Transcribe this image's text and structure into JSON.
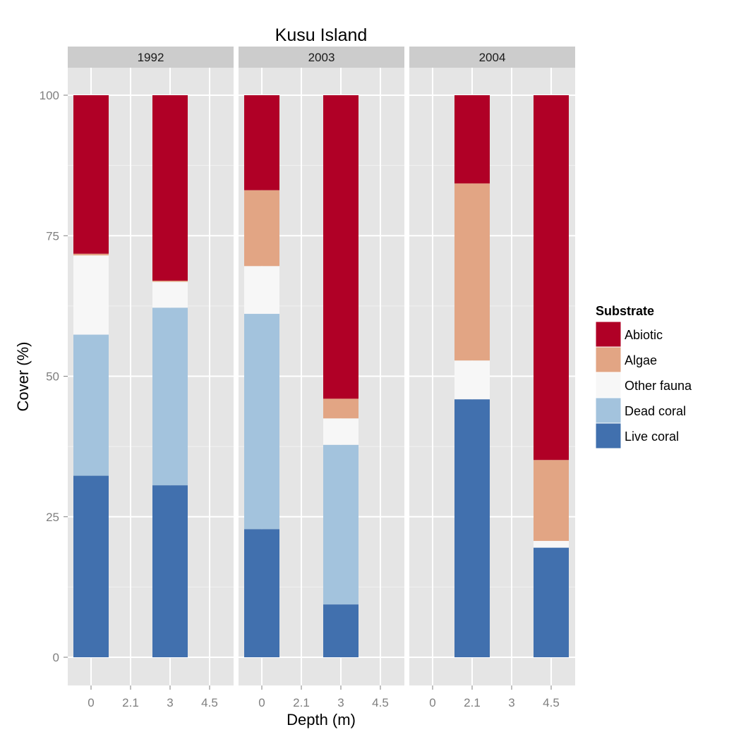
{
  "chart_data": {
    "type": "bar",
    "stacked": true,
    "title": "Kusu Island",
    "xlabel": "Depth (m)",
    "ylabel": "Cover (%)",
    "ylim": [
      -5,
      105
    ],
    "y_ticks": [
      0,
      25,
      50,
      75,
      100
    ],
    "categories": [
      "0",
      "2.1",
      "3",
      "4.5"
    ],
    "grid": true,
    "legend": {
      "title": "Substrate",
      "position": "right",
      "entries": [
        "Abiotic",
        "Algae",
        "Other fauna",
        "Dead coral",
        "Live coral"
      ]
    },
    "colors": {
      "Abiotic": "#b00026",
      "Algae": "#e2a584",
      "Other fauna": "#f7f7f7",
      "Dead coral": "#a3c3dd",
      "Live coral": "#4170ae"
    },
    "stack_order": [
      "Live coral",
      "Dead coral",
      "Other fauna",
      "Algae",
      "Abiotic"
    ],
    "panels": [
      {
        "label": "1992",
        "bars": [
          {
            "depth": "0",
            "Live coral": 32.3,
            "Dead coral": 25.1,
            "Other fauna": 14.1,
            "Algae": 0.3,
            "Abiotic": 28.2
          },
          {
            "depth": "3",
            "Live coral": 30.6,
            "Dead coral": 31.6,
            "Other fauna": 4.6,
            "Algae": 0.2,
            "Abiotic": 33.0
          }
        ]
      },
      {
        "label": "2003",
        "bars": [
          {
            "depth": "0",
            "Live coral": 22.8,
            "Dead coral": 38.3,
            "Other fauna": 8.5,
            "Algae": 13.5,
            "Abiotic": 16.9
          },
          {
            "depth": "3",
            "Live coral": 9.4,
            "Dead coral": 28.4,
            "Other fauna": 4.7,
            "Algae": 3.5,
            "Abiotic": 54.0
          }
        ]
      },
      {
        "label": "2004",
        "bars": [
          {
            "depth": "2.1",
            "Live coral": 45.9,
            "Dead coral": 0,
            "Other fauna": 6.9,
            "Algae": 31.5,
            "Abiotic": 15.7
          },
          {
            "depth": "4.5",
            "Live coral": 19.5,
            "Dead coral": 0,
            "Other fauna": 1.2,
            "Algae": 14.4,
            "Abiotic": 64.9
          }
        ]
      }
    ]
  }
}
